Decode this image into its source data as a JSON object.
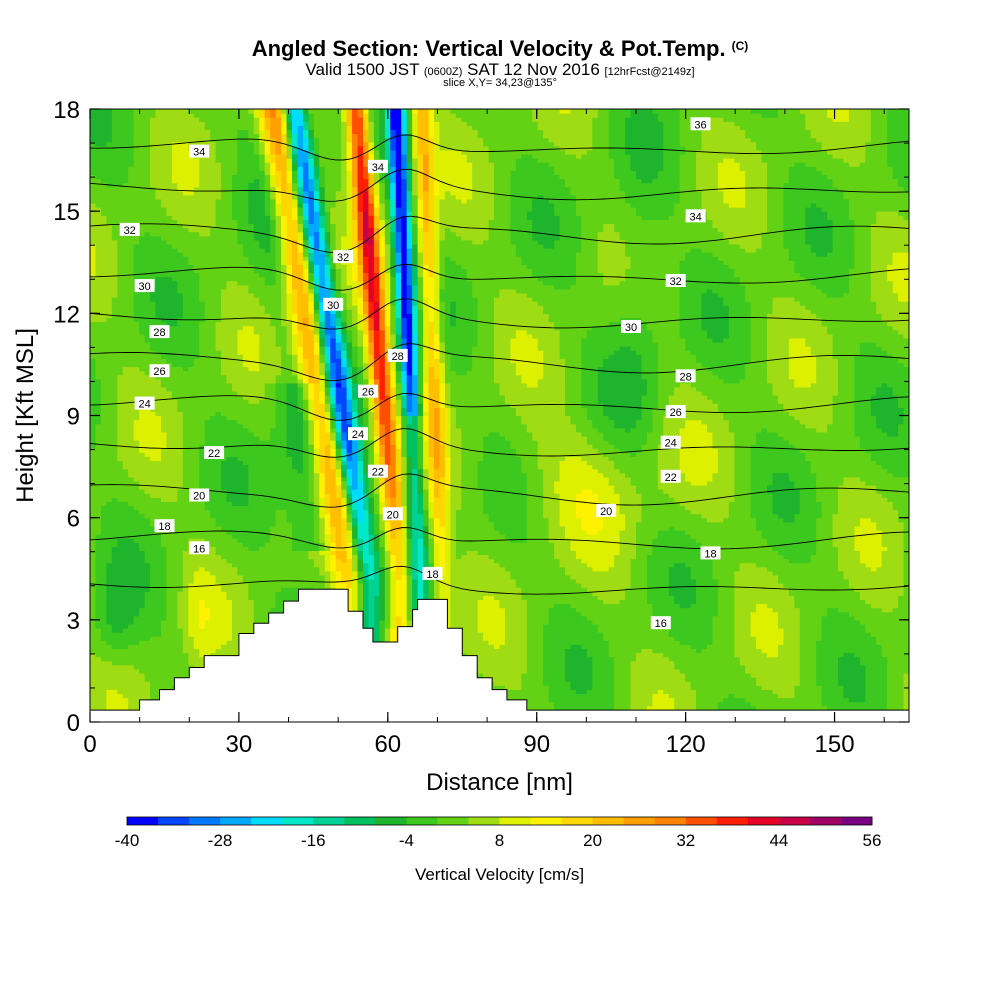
{
  "title": {
    "main": "Angled Section: Vertical Velocity & Pot.Temp.",
    "main_tag": "(C)",
    "valid_prefix": "Valid 1500 JST",
    "valid_utc": "(0600Z)",
    "valid_date": "SAT 12 Nov 2016",
    "forecast": "[12hrFcst@2149z]",
    "slice": "slice X,Y= 34,23@135°"
  },
  "chart_data": {
    "type": "heatmap",
    "xlabel": "Distance [nm]",
    "ylabel": "Height [Kft MSL]",
    "xlim": [
      0,
      165
    ],
    "ylim": [
      0,
      18
    ],
    "xticks": [
      0,
      30,
      60,
      90,
      120,
      150
    ],
    "yticks": [
      0,
      3,
      6,
      9,
      12,
      15,
      18
    ],
    "colorbar": {
      "label": "Vertical Velocity [cm/s]",
      "levels": [
        -40,
        -36,
        -32,
        -28,
        -24,
        -20,
        -16,
        -12,
        -8,
        -4,
        0,
        4,
        8,
        12,
        16,
        20,
        24,
        28,
        32,
        36,
        40,
        44,
        48,
        52,
        56
      ],
      "tick_labels": [
        "-40",
        "-28",
        "-16",
        "-4",
        "8",
        "20",
        "32",
        "44",
        "56"
      ],
      "colors": [
        "#0000ff",
        "#0046ff",
        "#0078ff",
        "#00aaff",
        "#00dcff",
        "#00e8c8",
        "#00d296",
        "#00c060",
        "#1eb42d",
        "#3cc81e",
        "#64d214",
        "#a0dc14",
        "#dcf000",
        "#fff200",
        "#ffd700",
        "#ffbe00",
        "#ffa000",
        "#ff8200",
        "#ff5000",
        "#ff1e00",
        "#e60028",
        "#c80046",
        "#a00064",
        "#780082"
      ]
    },
    "terrain_profile": {
      "x": [
        0,
        10,
        10,
        14,
        14,
        17,
        17,
        20,
        20,
        23,
        23,
        30,
        30,
        33,
        33,
        36,
        36,
        39,
        39,
        42,
        42,
        44,
        44,
        52,
        52,
        55,
        55,
        57,
        57,
        59,
        59,
        62,
        62,
        65,
        65,
        66,
        66,
        72,
        72,
        75,
        75,
        78,
        78,
        81,
        81,
        84,
        84,
        88,
        88,
        165
      ],
      "y": [
        0.35,
        0.35,
        0.65,
        0.65,
        0.95,
        0.95,
        1.3,
        1.3,
        1.6,
        1.6,
        1.95,
        1.95,
        2.6,
        2.6,
        2.9,
        2.9,
        3.2,
        3.2,
        3.55,
        3.55,
        3.9,
        3.9,
        3.9,
        3.9,
        3.25,
        3.25,
        2.75,
        2.75,
        2.35,
        2.35,
        2.35,
        2.35,
        2.8,
        2.8,
        3.3,
        3.3,
        3.6,
        3.6,
        2.75,
        2.75,
        1.95,
        1.95,
        1.3,
        1.3,
        0.95,
        0.95,
        0.65,
        0.65,
        0.35,
        0.35
      ]
    },
    "pot_temp_contour_labels": [
      {
        "value": 36,
        "x": 123,
        "y": 17.55
      },
      {
        "value": 34,
        "x": 22,
        "y": 16.75
      },
      {
        "value": 34,
        "x": 58,
        "y": 16.3
      },
      {
        "value": 34,
        "x": 122,
        "y": 14.85
      },
      {
        "value": 32,
        "x": 8,
        "y": 14.45
      },
      {
        "value": 32,
        "x": 51,
        "y": 13.65
      },
      {
        "value": 32,
        "x": 118,
        "y": 12.95
      },
      {
        "value": 30,
        "x": 11,
        "y": 12.8
      },
      {
        "value": 30,
        "x": 49,
        "y": 12.25
      },
      {
        "value": 30,
        "x": 109,
        "y": 11.6
      },
      {
        "value": 28,
        "x": 14,
        "y": 11.45
      },
      {
        "value": 28,
        "x": 62,
        "y": 10.75
      },
      {
        "value": 28,
        "x": 120,
        "y": 10.15
      },
      {
        "value": 26,
        "x": 14,
        "y": 10.3
      },
      {
        "value": 26,
        "x": 56,
        "y": 9.7
      },
      {
        "value": 26,
        "x": 118,
        "y": 9.1
      },
      {
        "value": 24,
        "x": 11,
        "y": 9.35
      },
      {
        "value": 24,
        "x": 54,
        "y": 8.45
      },
      {
        "value": 24,
        "x": 117,
        "y": 8.2
      },
      {
        "value": 22,
        "x": 25,
        "y": 7.9
      },
      {
        "value": 22,
        "x": 58,
        "y": 7.35
      },
      {
        "value": 22,
        "x": 117,
        "y": 7.2
      },
      {
        "value": 20,
        "x": 22,
        "y": 6.65
      },
      {
        "value": 20,
        "x": 61,
        "y": 6.1
      },
      {
        "value": 20,
        "x": 104,
        "y": 6.2
      },
      {
        "value": 18,
        "x": 15,
        "y": 5.75
      },
      {
        "value": 18,
        "x": 69,
        "y": 4.35
      },
      {
        "value": 18,
        "x": 125,
        "y": 4.95
      },
      {
        "value": 16,
        "x": 22,
        "y": 5.1
      },
      {
        "value": 16,
        "x": 115,
        "y": 2.9
      }
    ],
    "grid": false
  }
}
